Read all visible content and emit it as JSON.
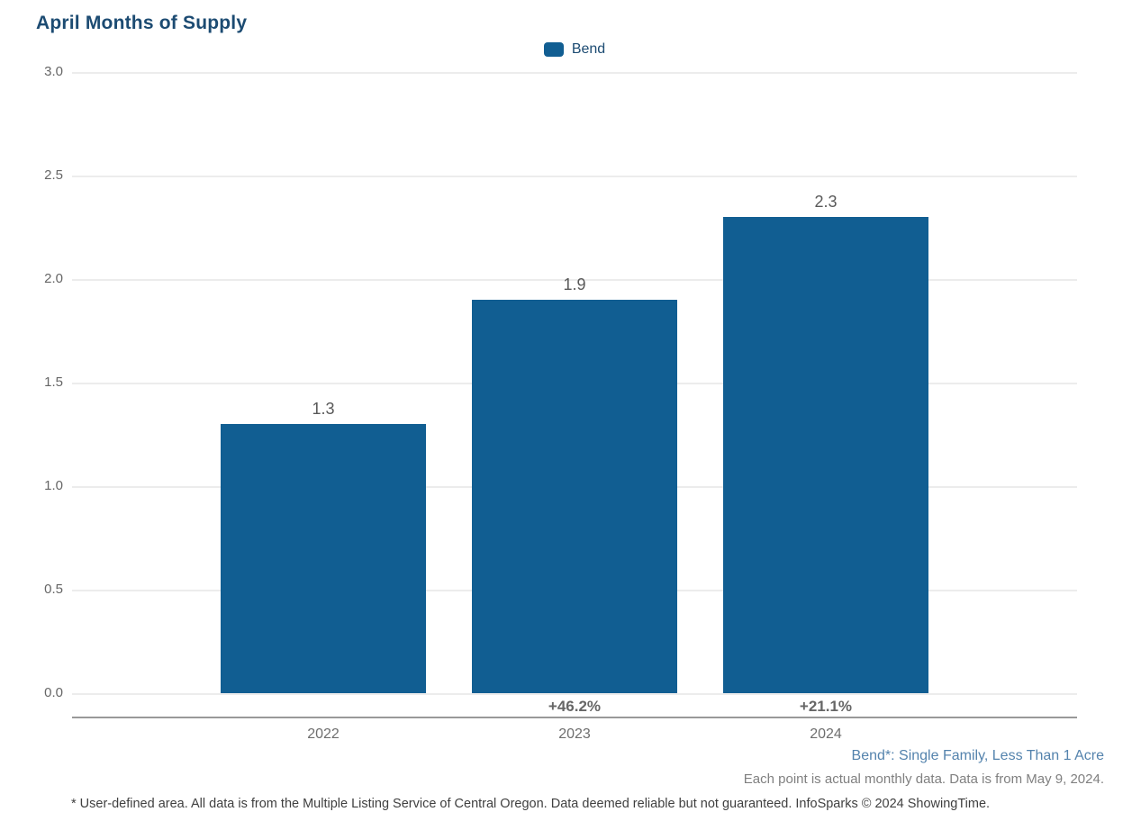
{
  "title": "April Months of Supply",
  "legend": {
    "label": "Bend",
    "color": "#115e92"
  },
  "chart_data": {
    "type": "bar",
    "title": "April Months of Supply",
    "categories": [
      "2022",
      "2023",
      "2024"
    ],
    "series": [
      {
        "name": "Bend",
        "values": [
          1.3,
          1.9,
          2.3
        ]
      }
    ],
    "value_labels": [
      "1.3",
      "1.9",
      "2.3"
    ],
    "pct_change_labels": [
      "",
      "+46.2%",
      "+21.1%"
    ],
    "xlabel": "",
    "ylabel": "",
    "ylim": [
      0,
      3
    ],
    "yticks": [
      "3.0",
      "2.5",
      "2.0",
      "1.5",
      "1.0",
      "0.5",
      "0.0"
    ],
    "ytick_values": [
      3.0,
      2.5,
      2.0,
      1.5,
      1.0,
      0.5,
      0.0
    ],
    "grid": true,
    "legend_position": "top-center",
    "bar_color": "#115e92",
    "gridline_color": "#ececec",
    "axis_line_color": "#999999"
  },
  "footer": {
    "series_note": "Bend*: Single Family, Less Than 1 Acre",
    "data_note": "Each point is actual monthly data. Data is from May 9, 2024.",
    "disclaimer": "* User-defined area. All data is from the Multiple Listing Service of Central Oregon. Data deemed reliable but not guaranteed. InfoSparks © 2024 ShowingTime."
  }
}
